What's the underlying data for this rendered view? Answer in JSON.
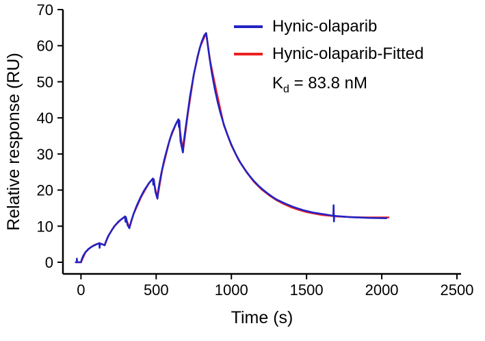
{
  "figure": {
    "annotation": {
      "base": "K",
      "sub": "d",
      "rest": " = 83.8 nM"
    }
  },
  "chart_data": {
    "type": "line",
    "title": "",
    "xlabel": "Time (s)",
    "ylabel": "Relative response (RU)",
    "xlim": [
      -120,
      2500
    ],
    "ylim": [
      0,
      70
    ],
    "xticks": [
      0,
      500,
      1000,
      1500,
      2000,
      2500
    ],
    "yticks": [
      0,
      10,
      20,
      30,
      40,
      50,
      60,
      70
    ],
    "grid": false,
    "legend_position": "top-right",
    "annotation": "Kd = 83.8 nM",
    "axis_color": "#000000",
    "series": [
      {
        "name": "Hynic-olaparib-Fitted",
        "color": "#ee2020",
        "points": [
          [
            -30,
            0
          ],
          [
            0,
            0
          ],
          [
            30,
            2.8
          ],
          [
            60,
            4.0
          ],
          [
            90,
            4.8
          ],
          [
            122,
            5.3
          ],
          [
            158,
            4.7
          ],
          [
            180,
            7.2
          ],
          [
            220,
            9.9
          ],
          [
            260,
            11.6
          ],
          [
            293,
            12.7
          ],
          [
            322,
            9.6
          ],
          [
            350,
            13.4
          ],
          [
            400,
            18.1
          ],
          [
            450,
            21.8
          ],
          [
            478,
            23.2
          ],
          [
            508,
            17.8
          ],
          [
            540,
            25.6
          ],
          [
            590,
            34.0
          ],
          [
            630,
            38.2
          ],
          [
            648,
            39.6
          ],
          [
            678,
            30.6
          ],
          [
            710,
            41.0
          ],
          [
            750,
            52.0
          ],
          [
            790,
            59.5
          ],
          [
            832,
            63.5
          ],
          [
            860,
            55.5
          ],
          [
            900,
            47.5
          ],
          [
            950,
            38.0
          ],
          [
            1000,
            32.4
          ],
          [
            1050,
            28.2
          ],
          [
            1100,
            25.0
          ],
          [
            1150,
            22.3
          ],
          [
            1200,
            20.2
          ],
          [
            1250,
            18.6
          ],
          [
            1300,
            17.2
          ],
          [
            1350,
            16.1
          ],
          [
            1400,
            15.2
          ],
          [
            1450,
            14.5
          ],
          [
            1500,
            13.9
          ],
          [
            1550,
            13.5
          ],
          [
            1600,
            13.1
          ],
          [
            1650,
            12.9
          ],
          [
            1700,
            12.7
          ],
          [
            1750,
            12.6
          ],
          [
            1800,
            12.5
          ],
          [
            1850,
            12.45
          ],
          [
            1900,
            12.4
          ],
          [
            1950,
            12.4
          ],
          [
            2000,
            12.4
          ],
          [
            2045,
            12.4
          ]
        ]
      },
      {
        "name": "Hynic-olaparib",
        "color": "#2323c4",
        "points": [
          [
            -35,
            0
          ],
          [
            -28,
            0
          ],
          [
            -27,
            1.0
          ],
          [
            -26,
            0
          ],
          [
            0,
            0
          ],
          [
            5,
            0.8
          ],
          [
            15,
            1.8
          ],
          [
            30,
            2.8
          ],
          [
            50,
            3.7
          ],
          [
            75,
            4.4
          ],
          [
            100,
            4.9
          ],
          [
            122,
            5.3
          ],
          [
            124,
            4.0
          ],
          [
            127,
            5.2
          ],
          [
            140,
            5.0
          ],
          [
            158,
            4.7
          ],
          [
            160,
            5.1
          ],
          [
            170,
            6.2
          ],
          [
            185,
            7.5
          ],
          [
            205,
            8.9
          ],
          [
            225,
            10.1
          ],
          [
            250,
            11.3
          ],
          [
            275,
            12.1
          ],
          [
            293,
            12.7
          ],
          [
            296,
            11.2
          ],
          [
            299,
            12.5
          ],
          [
            310,
            10.3
          ],
          [
            322,
            9.4
          ],
          [
            325,
            10.0
          ],
          [
            335,
            11.5
          ],
          [
            350,
            13.4
          ],
          [
            370,
            15.6
          ],
          [
            395,
            17.9
          ],
          [
            420,
            19.9
          ],
          [
            450,
            21.8
          ],
          [
            478,
            23.2
          ],
          [
            481,
            21.5
          ],
          [
            484,
            23.0
          ],
          [
            495,
            19.5
          ],
          [
            508,
            17.6
          ],
          [
            511,
            19.0
          ],
          [
            520,
            21.5
          ],
          [
            535,
            24.8
          ],
          [
            555,
            28.6
          ],
          [
            580,
            32.5
          ],
          [
            605,
            35.9
          ],
          [
            630,
            38.2
          ],
          [
            648,
            39.6
          ],
          [
            651,
            37.5
          ],
          [
            654,
            39.3
          ],
          [
            662,
            33.5
          ],
          [
            678,
            30.4
          ],
          [
            681,
            32.5
          ],
          [
            690,
            35.5
          ],
          [
            705,
            40.0
          ],
          [
            725,
            46.0
          ],
          [
            750,
            52.0
          ],
          [
            775,
            57.0
          ],
          [
            800,
            60.8
          ],
          [
            820,
            62.9
          ],
          [
            832,
            63.5
          ],
          [
            838,
            62.0
          ],
          [
            845,
            59.5
          ],
          [
            855,
            56.5
          ],
          [
            870,
            52.5
          ],
          [
            890,
            48.0
          ],
          [
            910,
            44.2
          ],
          [
            930,
            41.0
          ],
          [
            950,
            38.2
          ],
          [
            975,
            35.2
          ],
          [
            1000,
            32.6
          ],
          [
            1030,
            29.9
          ],
          [
            1060,
            27.6
          ],
          [
            1090,
            25.7
          ],
          [
            1120,
            24.0
          ],
          [
            1150,
            22.5
          ],
          [
            1180,
            21.2
          ],
          [
            1210,
            20.1
          ],
          [
            1240,
            19.1
          ],
          [
            1270,
            18.2
          ],
          [
            1300,
            17.4
          ],
          [
            1330,
            16.8
          ],
          [
            1360,
            16.2
          ],
          [
            1390,
            15.7
          ],
          [
            1420,
            15.2
          ],
          [
            1450,
            14.8
          ],
          [
            1480,
            14.4
          ],
          [
            1510,
            14.1
          ],
          [
            1540,
            13.8
          ],
          [
            1570,
            13.6
          ],
          [
            1600,
            13.4
          ],
          [
            1630,
            13.2
          ],
          [
            1660,
            13.0
          ],
          [
            1678,
            12.9
          ],
          [
            1680,
            15.8
          ],
          [
            1682,
            11.3
          ],
          [
            1684,
            12.9
          ],
          [
            1700,
            12.8
          ],
          [
            1730,
            12.7
          ],
          [
            1760,
            12.6
          ],
          [
            1790,
            12.5
          ],
          [
            1820,
            12.45
          ],
          [
            1850,
            12.4
          ],
          [
            1880,
            12.35
          ],
          [
            1910,
            12.3
          ],
          [
            1940,
            12.27
          ],
          [
            1970,
            12.24
          ],
          [
            2000,
            12.22
          ],
          [
            2030,
            12.2
          ]
        ]
      }
    ]
  }
}
